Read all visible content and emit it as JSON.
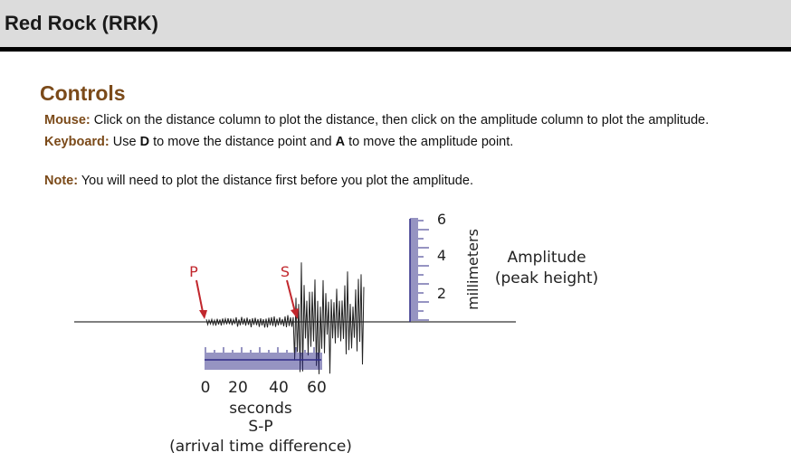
{
  "header": {
    "title": "Red Rock (RRK)"
  },
  "controls": {
    "heading": "Controls",
    "mouse": {
      "key": "Mouse:",
      "text": "Click on the distance column to plot the distance, then click on the amplitude column to plot the amplitude."
    },
    "keyboard": {
      "key": "Keyboard:",
      "pre": "Use ",
      "d": "D",
      "mid": " to move the distance point and ",
      "a": "A",
      "post": " to move the amplitude point."
    },
    "note": {
      "key": "Note:",
      "text": "You will need to plot the distance first before you plot the amplitude."
    }
  },
  "figure": {
    "p_label": "P",
    "s_label": "S",
    "time_ticks": [
      "0",
      "20",
      "40",
      "60"
    ],
    "time_unit": "seconds",
    "time_title": "S-P",
    "time_subtitle": "(arrival time difference)",
    "amp_ticks": [
      "6",
      "4",
      "2"
    ],
    "amp_unit": "millimeters",
    "amp_title": "Amplitude",
    "amp_subtitle": "(peak height)",
    "colors": {
      "arrow": "#c1272d",
      "scale": "#2e2a86",
      "ink": "#222222"
    }
  }
}
